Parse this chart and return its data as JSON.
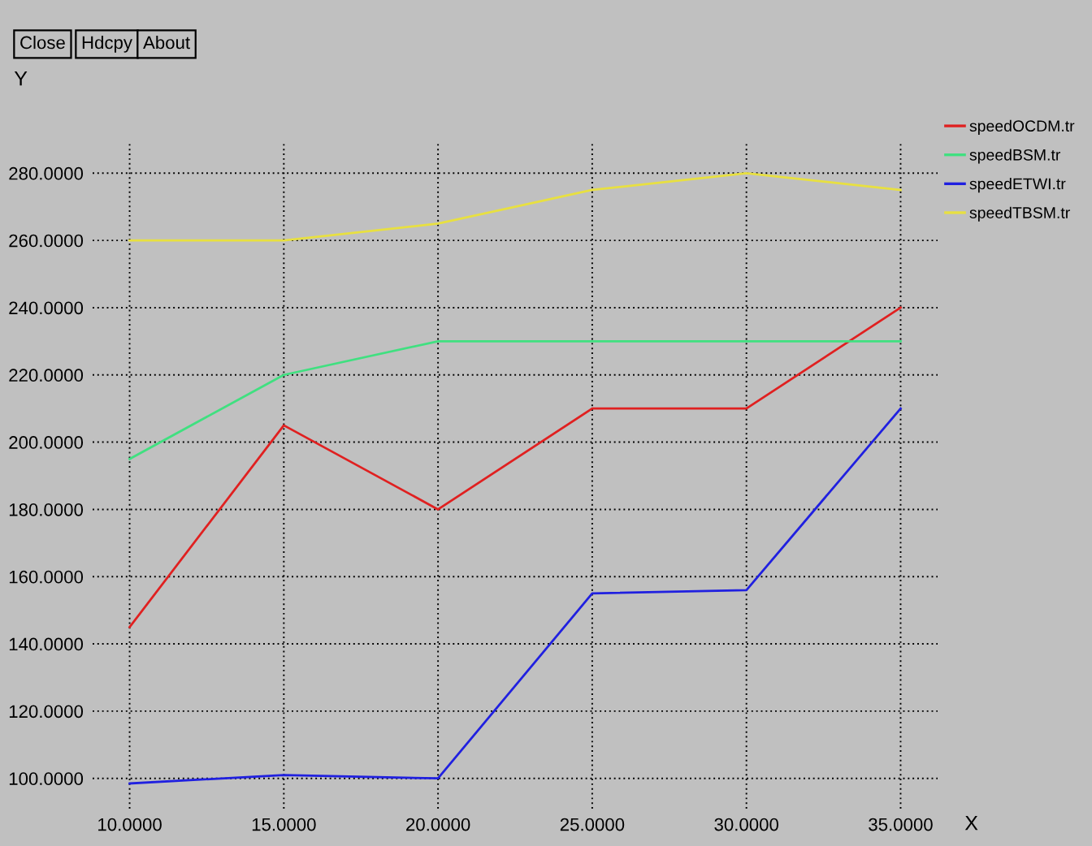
{
  "chart_data": {
    "type": "line",
    "xlabel": "X",
    "ylabel": "Y",
    "annotations": [
      "Close",
      "Hdcpy",
      "About"
    ],
    "x": [
      10,
      15,
      20,
      25,
      30,
      35
    ],
    "series": [
      {
        "name": "speedOCDM.tr",
        "color": "#e02020",
        "values": [
          145,
          205,
          180,
          210,
          210,
          240
        ]
      },
      {
        "name": "speedBSM.tr",
        "color": "#40e080",
        "values": [
          195,
          220,
          230,
          230,
          230,
          230
        ]
      },
      {
        "name": "speedETWI.tr",
        "color": "#2020e0",
        "values": [
          98.5,
          101,
          100,
          155,
          156,
          210
        ]
      },
      {
        "name": "speedTBSM.tr",
        "color": "#e8e040",
        "values": [
          260,
          260,
          265,
          275,
          280,
          275
        ]
      }
    ],
    "xlim": [
      8.8,
      36.2
    ],
    "ylim": [
      91,
      289
    ],
    "xticks": [
      {
        "value": 10,
        "label": "10.0000"
      },
      {
        "value": 15,
        "label": "15.0000"
      },
      {
        "value": 20,
        "label": "20.0000"
      },
      {
        "value": 25,
        "label": "25.0000"
      },
      {
        "value": 30,
        "label": "30.0000"
      },
      {
        "value": 35,
        "label": "35.0000"
      }
    ],
    "yticks": [
      {
        "value": 100,
        "label": "100.0000"
      },
      {
        "value": 120,
        "label": "120.0000"
      },
      {
        "value": 140,
        "label": "140.0000"
      },
      {
        "value": 160,
        "label": "160.0000"
      },
      {
        "value": 180,
        "label": "180.0000"
      },
      {
        "value": 200,
        "label": "200.0000"
      },
      {
        "value": 220,
        "label": "220.0000"
      },
      {
        "value": 240,
        "label": "240.0000"
      },
      {
        "value": 260,
        "label": "260.0000"
      },
      {
        "value": 280,
        "label": "280.0000"
      }
    ],
    "grid": true,
    "legend": "right",
    "marker": "none",
    "line_style": "solid"
  }
}
